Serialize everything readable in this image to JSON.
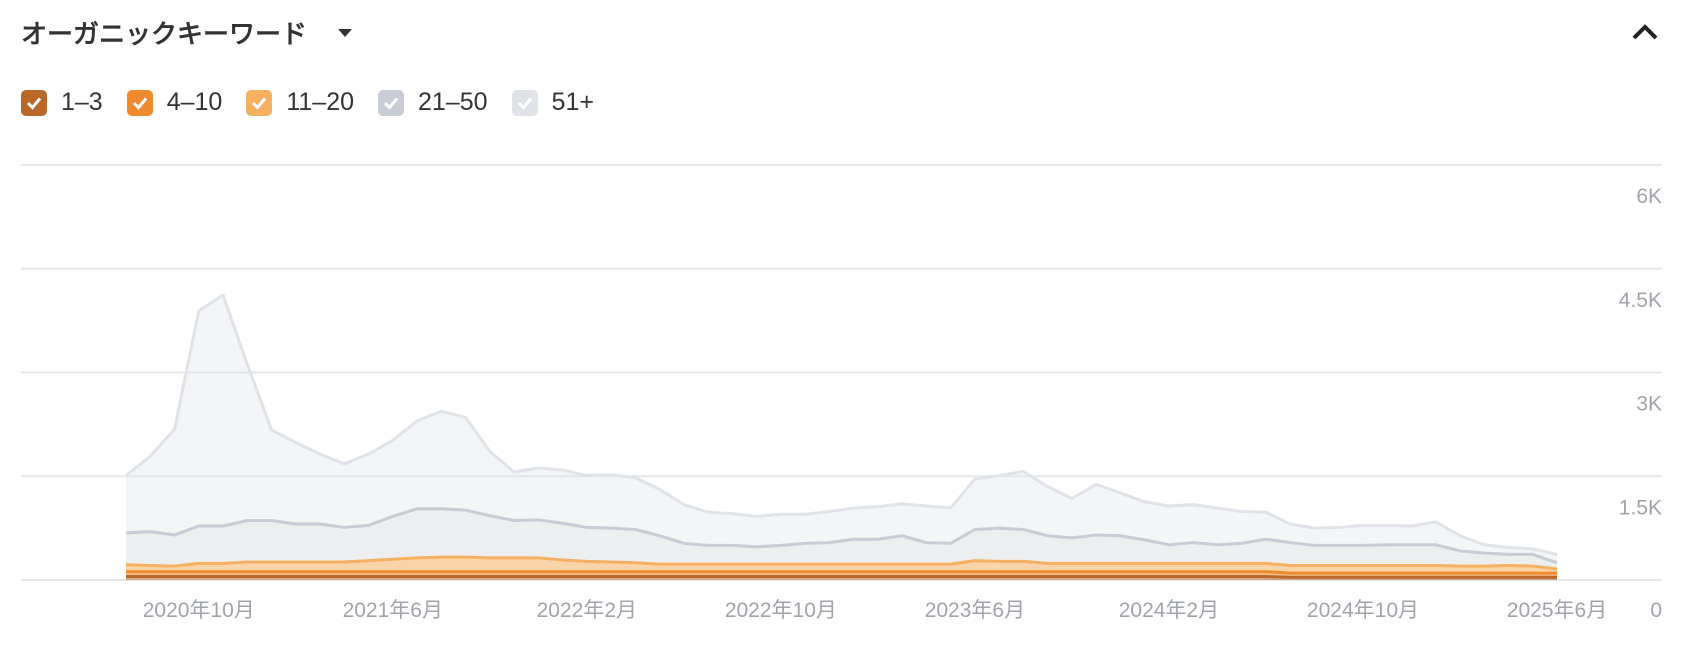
{
  "header": {
    "title": "オーガニックキーワード"
  },
  "chart_data": {
    "type": "stacked-area",
    "categories": [
      null,
      null,
      null,
      "2020年10月",
      null,
      null,
      null,
      null,
      null,
      null,
      null,
      "2021年6月",
      null,
      null,
      null,
      null,
      null,
      null,
      null,
      "2022年2月",
      null,
      null,
      null,
      null,
      null,
      null,
      null,
      "2022年10月",
      null,
      null,
      null,
      null,
      null,
      null,
      null,
      "2023年6月",
      null,
      null,
      null,
      null,
      null,
      null,
      null,
      "2024年2月",
      null,
      null,
      null,
      null,
      null,
      null,
      null,
      "2024年10月",
      null,
      null,
      null,
      null,
      null,
      null,
      null,
      "2025年6月"
    ],
    "series": [
      {
        "name": "1–3",
        "color": "#b8692a",
        "values": [
          50,
          50,
          50,
          50,
          50,
          50,
          50,
          50,
          50,
          50,
          50,
          50,
          50,
          50,
          50,
          50,
          50,
          50,
          50,
          50,
          50,
          50,
          50,
          50,
          50,
          50,
          50,
          50,
          50,
          50,
          50,
          50,
          50,
          50,
          50,
          50,
          50,
          50,
          50,
          50,
          50,
          50,
          50,
          50,
          50,
          50,
          50,
          50,
          40,
          40,
          40,
          40,
          40,
          40,
          40,
          40,
          40,
          40,
          40,
          40
        ]
      },
      {
        "name": "4–10",
        "color": "#f08a2f",
        "values": [
          70,
          70,
          70,
          70,
          70,
          70,
          70,
          70,
          70,
          70,
          70,
          70,
          70,
          70,
          70,
          70,
          70,
          70,
          70,
          70,
          70,
          70,
          70,
          70,
          70,
          70,
          70,
          70,
          70,
          70,
          70,
          70,
          70,
          70,
          70,
          70,
          70,
          70,
          70,
          70,
          70,
          70,
          70,
          70,
          70,
          70,
          70,
          70,
          60,
          60,
          60,
          60,
          60,
          60,
          60,
          60,
          60,
          60,
          60,
          60
        ]
      },
      {
        "name": "11–20",
        "color": "#f5b062",
        "values": [
          100,
          90,
          80,
          120,
          120,
          140,
          140,
          140,
          140,
          140,
          160,
          180,
          200,
          210,
          210,
          200,
          200,
          200,
          170,
          150,
          140,
          130,
          110,
          110,
          110,
          110,
          110,
          110,
          110,
          110,
          110,
          110,
          110,
          110,
          110,
          160,
          150,
          150,
          120,
          120,
          120,
          120,
          120,
          120,
          120,
          120,
          120,
          120,
          110,
          110,
          110,
          110,
          110,
          110,
          110,
          100,
          100,
          110,
          100,
          60
        ]
      },
      {
        "name": "21–50",
        "color": "#c8cdd5",
        "values": [
          460,
          490,
          450,
          540,
          540,
          600,
          600,
          550,
          550,
          500,
          510,
          620,
          710,
          700,
          680,
          610,
          540,
          550,
          530,
          490,
          490,
          480,
          410,
          300,
          270,
          270,
          250,
          270,
          300,
          310,
          360,
          360,
          410,
          310,
          300,
          450,
          480,
          460,
          400,
          370,
          410,
          400,
          340,
          270,
          300,
          270,
          290,
          350,
          330,
          290,
          290,
          290,
          300,
          300,
          300,
          220,
          190,
          160,
          170,
          90
        ]
      },
      {
        "name": "51+",
        "color": "#dfe2e7",
        "values": [
          830,
          1090,
          1530,
          3110,
          3340,
          2260,
          1310,
          1180,
          1010,
          920,
          1030,
          1100,
          1270,
          1410,
          1340,
          930,
          700,
          750,
          770,
          750,
          770,
          750,
          670,
          560,
          480,
          460,
          440,
          450,
          420,
          450,
          450,
          470,
          460,
          530,
          510,
          730,
          760,
          840,
          710,
          570,
          730,
          620,
          550,
          560,
          550,
          530,
          460,
          390,
          270,
          250,
          260,
          290,
          280,
          270,
          330,
          220,
          120,
          100,
          80,
          120
        ]
      }
    ],
    "ylim": [
      0,
      6000
    ],
    "yticks": [
      0,
      {
        "value": 1500,
        "label": "1.5K"
      },
      {
        "value": 3000,
        "label": "3K"
      },
      {
        "value": 4500,
        "label": "4.5K"
      },
      {
        "value": 6000,
        "label": "6K"
      }
    ],
    "grid": true
  }
}
